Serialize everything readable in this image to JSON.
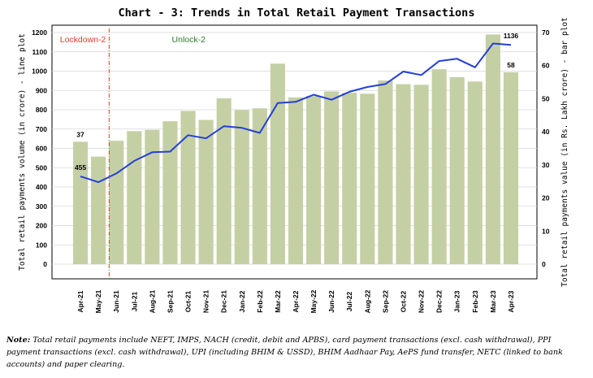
{
  "title": "Chart - 3: Trends in Total Retail Payment Transactions",
  "note": {
    "prefix": "Note:",
    "text": "Total retail payments include NEFT, IMPS, NACH (credit, debit and APBS), card payment transactions (excl. cash withdrawal), PPI payment transactions (excl. cash withdrawal), UPI (including BHIM & USSD), BHIM Aadhaar Pay, AePS fund transfer, NETC (linked to bank accounts) and paper clearing."
  },
  "colors": {
    "bar": "#c5cfa4",
    "line": "#2340d8",
    "lockdown": "#e23c2a",
    "unlock": "#2f7a2f",
    "grid": "#d6d6d6"
  },
  "chart_data": {
    "type": "bar+line",
    "title": "Chart - 3: Trends in Total Retail Payment Transactions",
    "categories": [
      "Apr-21",
      "May-21",
      "Jun-21",
      "Jul-21",
      "Aug-21",
      "Sep-21",
      "Oct-21",
      "Nov-21",
      "Dec-21",
      "Jan-22",
      "Feb-22",
      "Mar-22",
      "Apr-22",
      "May-22",
      "Jun-22",
      "Jul-22",
      "Aug-22",
      "Sep-22",
      "Oct-22",
      "Nov-22",
      "Dec-22",
      "Jan-23",
      "Feb-23",
      "Mar-23",
      "Apr-23"
    ],
    "series": [
      {
        "axis": "right",
        "render": "bar",
        "values": [
          37,
          32.5,
          37.3,
          40.2,
          40.6,
          43.2,
          46.3,
          43.6,
          50.1,
          46.6,
          47.1,
          60.6,
          50.4,
          50.8,
          52.2,
          51.8,
          51.5,
          55.5,
          54.4,
          54.2,
          58.9,
          56.5,
          55.2,
          69.4,
          58
        ]
      },
      {
        "axis": "left",
        "render": "line",
        "values": [
          455,
          425,
          470,
          535,
          580,
          583,
          668,
          652,
          715,
          706,
          680,
          835,
          841,
          878,
          852,
          893,
          918,
          933,
          998,
          980,
          1052,
          1064,
          1020,
          1143,
          1136
        ]
      }
    ],
    "y_left": {
      "label": "Total retail payments volume (in crore) - line plot",
      "range": [
        0,
        1200
      ],
      "ticks": [
        0,
        100,
        200,
        300,
        400,
        500,
        600,
        700,
        800,
        900,
        1000,
        1100,
        1200
      ]
    },
    "y_right": {
      "label": "Total retail payments value (in Rs. Lakh crore) - bar plot",
      "range": [
        0,
        70
      ],
      "ticks": [
        0,
        10,
        20,
        30,
        40,
        50,
        60,
        70
      ]
    },
    "data_labels": [
      {
        "series": 0,
        "index": 0,
        "text": "37"
      },
      {
        "series": 0,
        "index": 24,
        "text": "58"
      },
      {
        "series": 1,
        "index": 0,
        "text": "455"
      },
      {
        "series": 1,
        "index": 24,
        "text": "1136"
      }
    ],
    "annotations": [
      {
        "text": "Lockdown-2",
        "between": [
          1,
          2
        ],
        "style": "dash-dot vertical line"
      },
      {
        "text": "Unlock-2",
        "near_index": 6
      }
    ],
    "grid": "horizontal"
  }
}
